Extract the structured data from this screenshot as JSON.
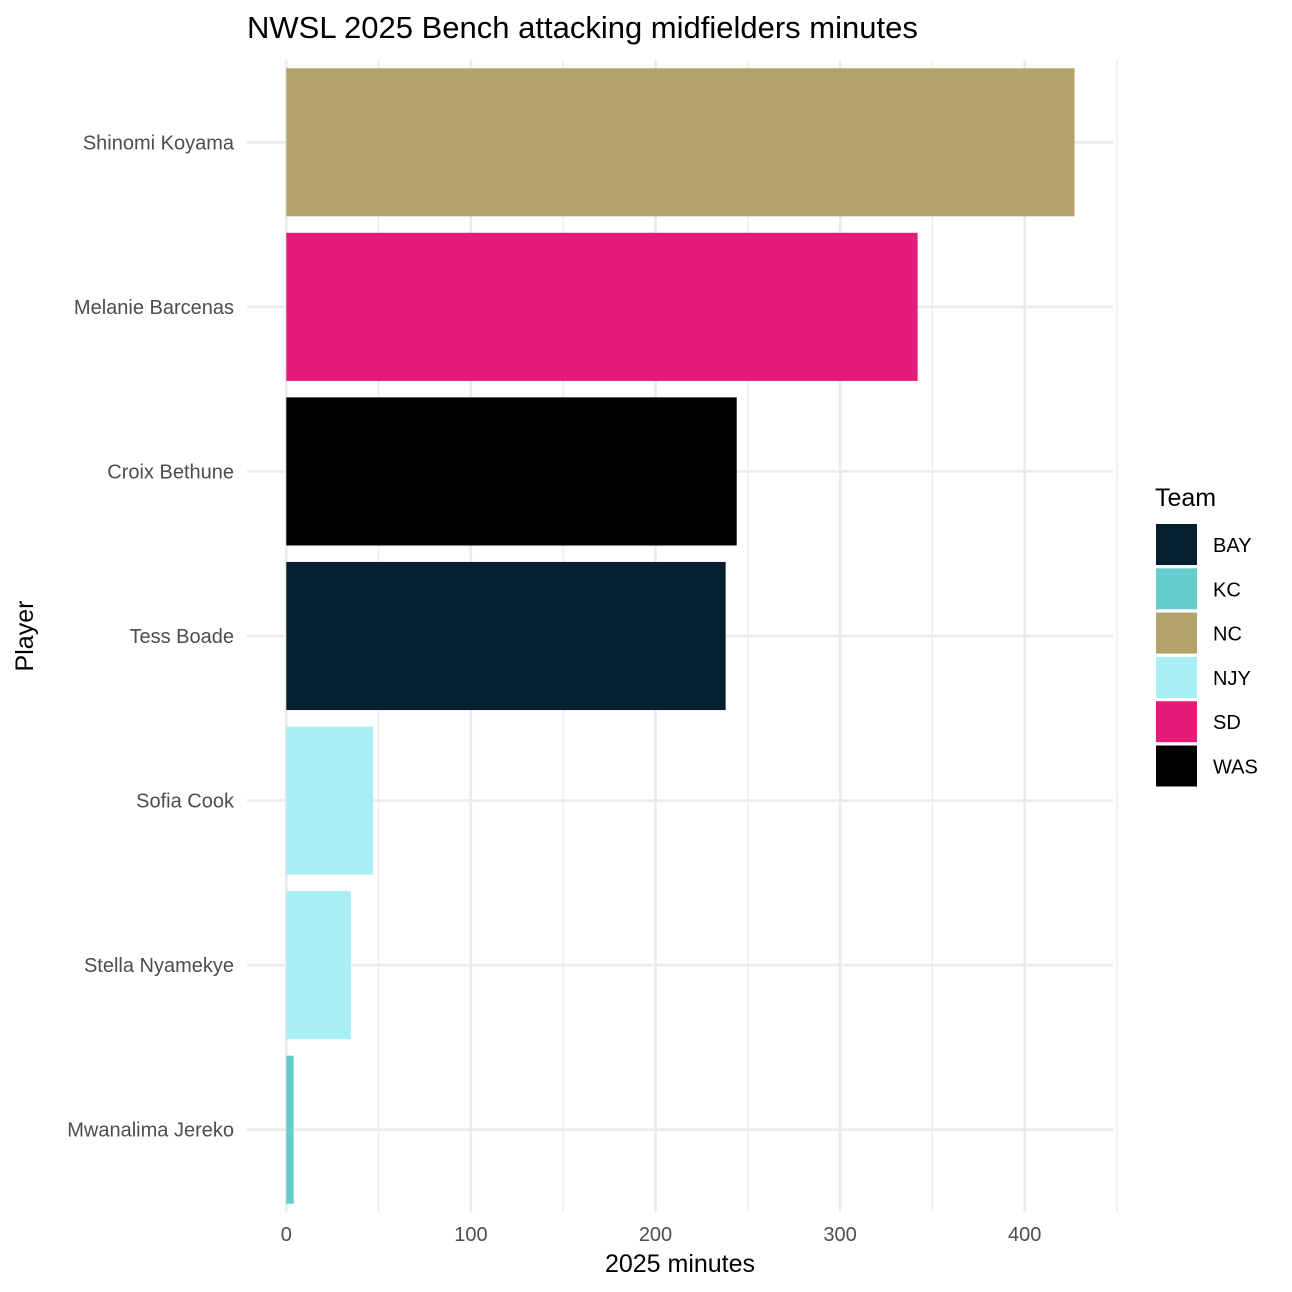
{
  "chart_data": {
    "type": "bar",
    "orientation": "horizontal",
    "title": "NWSL 2025 Bench attacking midfielders minutes",
    "xlabel": "2025 minutes",
    "ylabel": "Player",
    "xlim": [
      0,
      450
    ],
    "x_ticks": [
      0,
      100,
      200,
      300,
      400
    ],
    "grid": true,
    "legend": {
      "title": "Team",
      "placement": "right",
      "entries": [
        {
          "label": "BAY",
          "color": "#061F2E"
        },
        {
          "label": "KC",
          "color": "#65CDCB"
        },
        {
          "label": "NC",
          "color": "#B4A36A"
        },
        {
          "label": "NJY",
          "color": "#A8EEF4"
        },
        {
          "label": "SD",
          "color": "#E31C79"
        },
        {
          "label": "WAS",
          "color": "#000000"
        }
      ]
    },
    "bars": [
      {
        "player": "Shinomi Koyama",
        "team": "NC",
        "minutes": 427
      },
      {
        "player": "Melanie Barcenas",
        "team": "SD",
        "minutes": 342
      },
      {
        "player": "Croix Bethune",
        "team": "WAS",
        "minutes": 244
      },
      {
        "player": "Tess Boade",
        "team": "BAY",
        "minutes": 238
      },
      {
        "player": "Sofia Cook",
        "team": "NJY",
        "minutes": 47
      },
      {
        "player": "Stella Nyamekye",
        "team": "NJY",
        "minutes": 35
      },
      {
        "player": "Mwanalima Jereko",
        "team": "KC",
        "minutes": 4
      }
    ]
  }
}
